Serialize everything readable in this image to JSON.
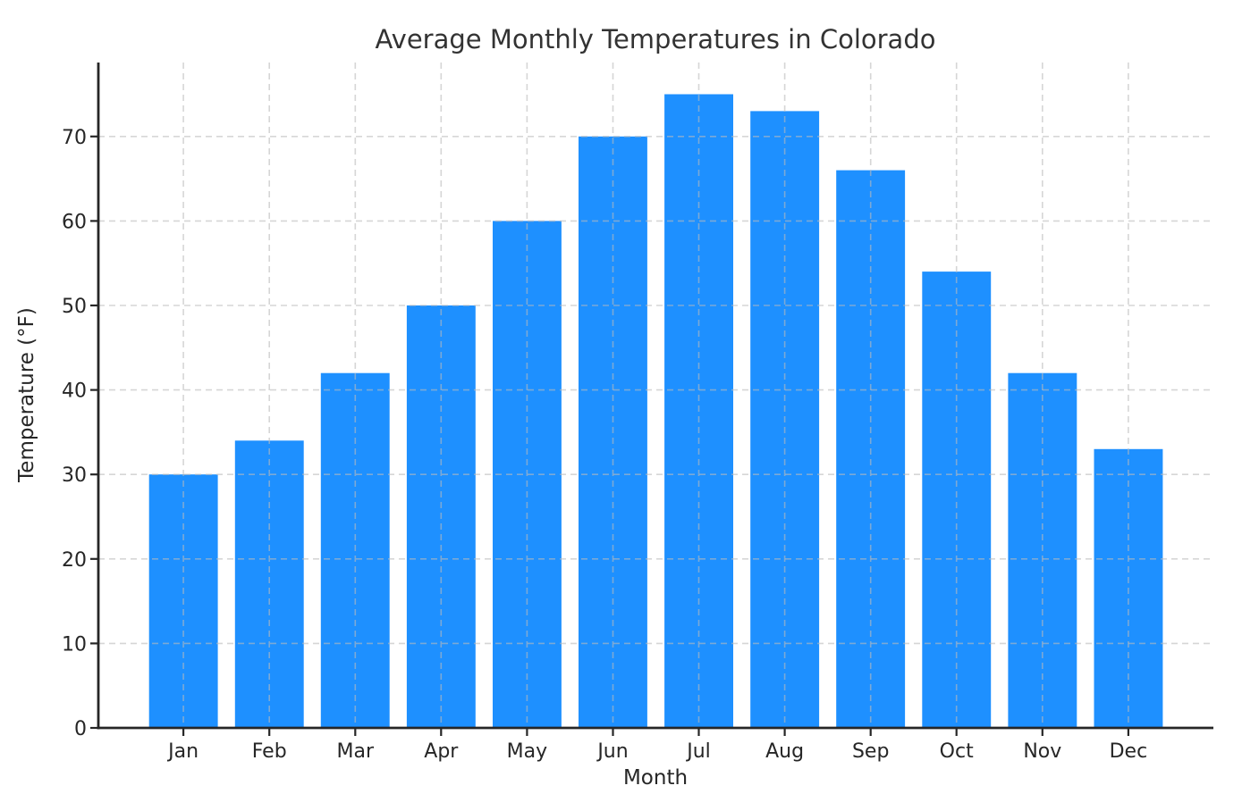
{
  "chart_data": {
    "type": "bar",
    "title": "Average Monthly Temperatures in Colorado",
    "xlabel": "Month",
    "ylabel": "Temperature (°F)",
    "categories": [
      "Jan",
      "Feb",
      "Mar",
      "Apr",
      "May",
      "Jun",
      "Jul",
      "Aug",
      "Sep",
      "Oct",
      "Nov",
      "Dec"
    ],
    "values": [
      30,
      34,
      42,
      50,
      60,
      70,
      75,
      73,
      66,
      54,
      42,
      33
    ],
    "yticks": [
      0,
      10,
      20,
      30,
      40,
      50,
      60,
      70
    ],
    "ylim": [
      0,
      78.75
    ],
    "bar_width_fraction": 0.8,
    "grid": true,
    "grid_style": "dashed",
    "legend": null,
    "colors": {
      "bar": "#1E90FF",
      "grid": "#bbbbbb",
      "axis": "#262626",
      "text": "#262626",
      "title": "#333333",
      "background": "#ffffff"
    }
  }
}
